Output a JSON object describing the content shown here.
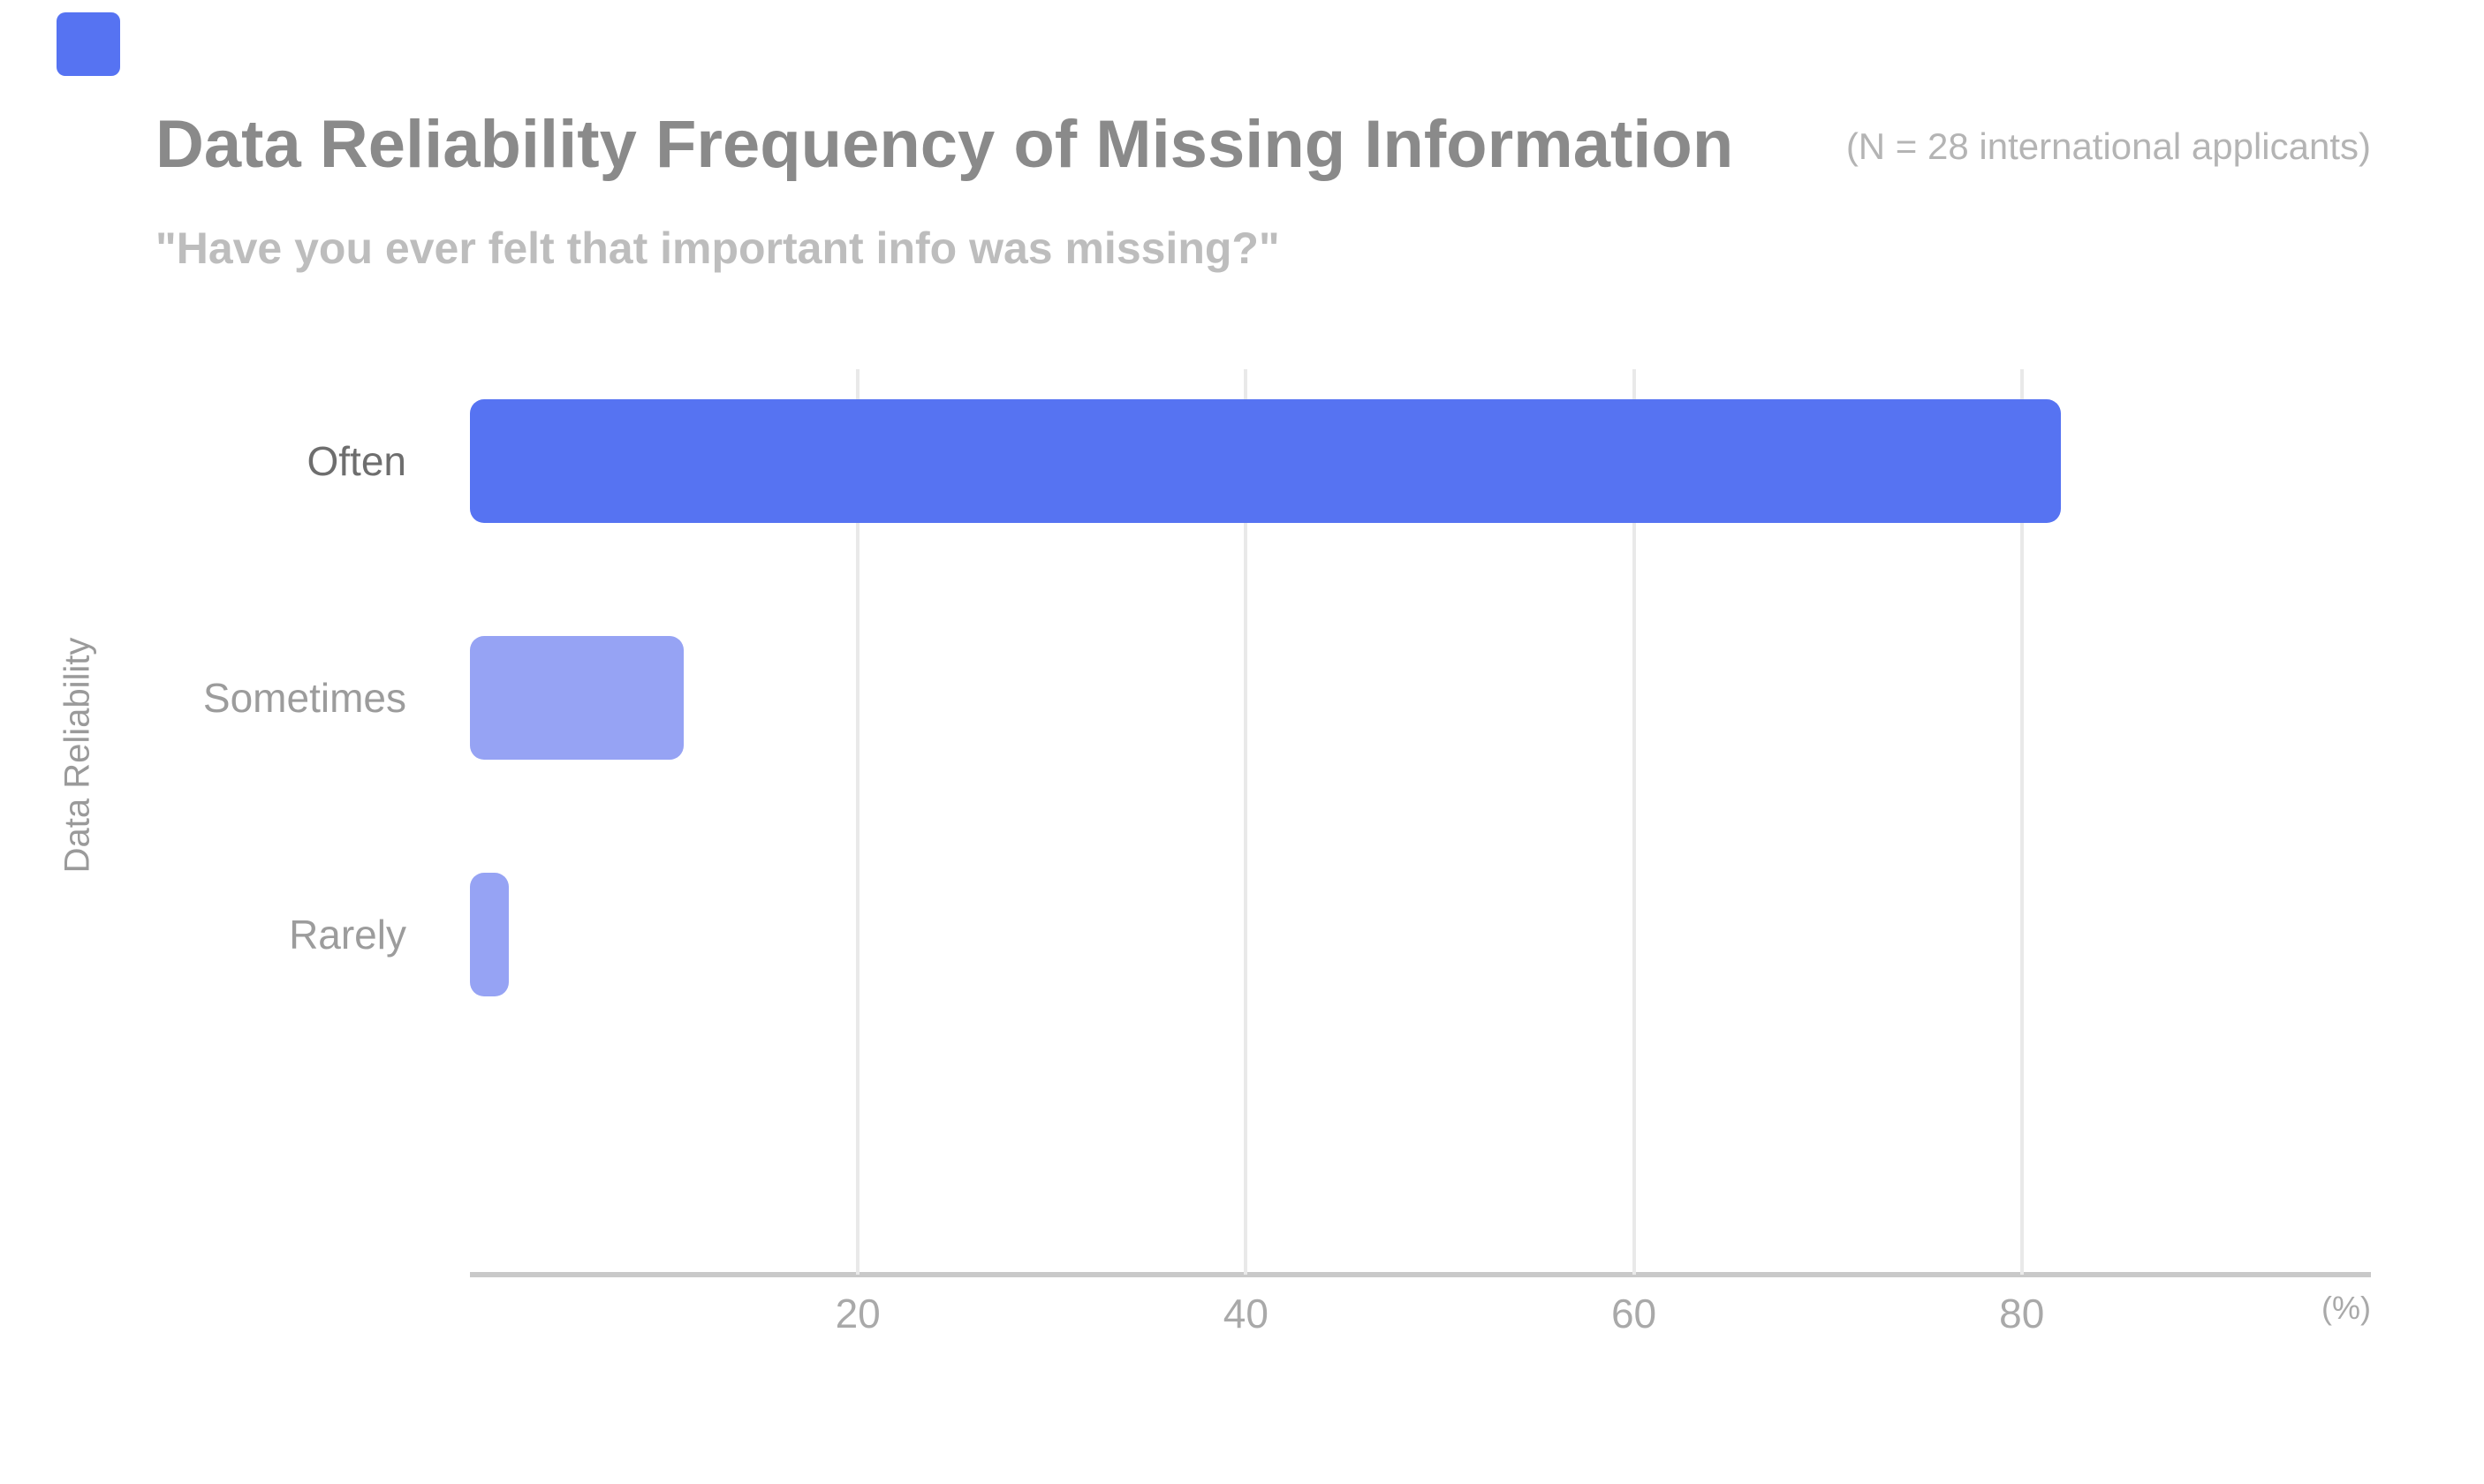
{
  "slide": {
    "accent_square_color": "#5673F2"
  },
  "header": {
    "title": "Data Reliability Frequency of Missing Information",
    "subtitle": "\"Have you ever felt that important info was missing?\"",
    "sample_note": "(N = 28 international applicants)"
  },
  "chart_data": {
    "type": "bar",
    "orientation": "horizontal",
    "title": "Data Reliability Frequency of Missing Information",
    "subtitle": "\"Have you ever felt that important info was missing?\"",
    "sample_note": "(N = 28 international applicants)",
    "categories": [
      "Often",
      "Sometimes",
      "Rarely"
    ],
    "values": [
      82,
      11,
      2
    ],
    "unit_label": "(%)",
    "ylabel": "Data Reliability",
    "xlim": [
      0,
      98
    ],
    "xticks": [
      20,
      40,
      60,
      80
    ],
    "grid": "vertical-only",
    "legend": "none",
    "bar_colors": [
      "#5673F2",
      "#96A3F4",
      "#96A3F4"
    ],
    "category_label_colors": [
      "#6e6e6e",
      "#9c9c9c",
      "#9c9c9c"
    ]
  },
  "colors": {
    "gridline": "#e9e9e9",
    "axis_line": "#c9c9c9",
    "title": "#8a8a8a",
    "subtitle": "#bdbdbd",
    "tick_label": "#a9a9a9"
  }
}
